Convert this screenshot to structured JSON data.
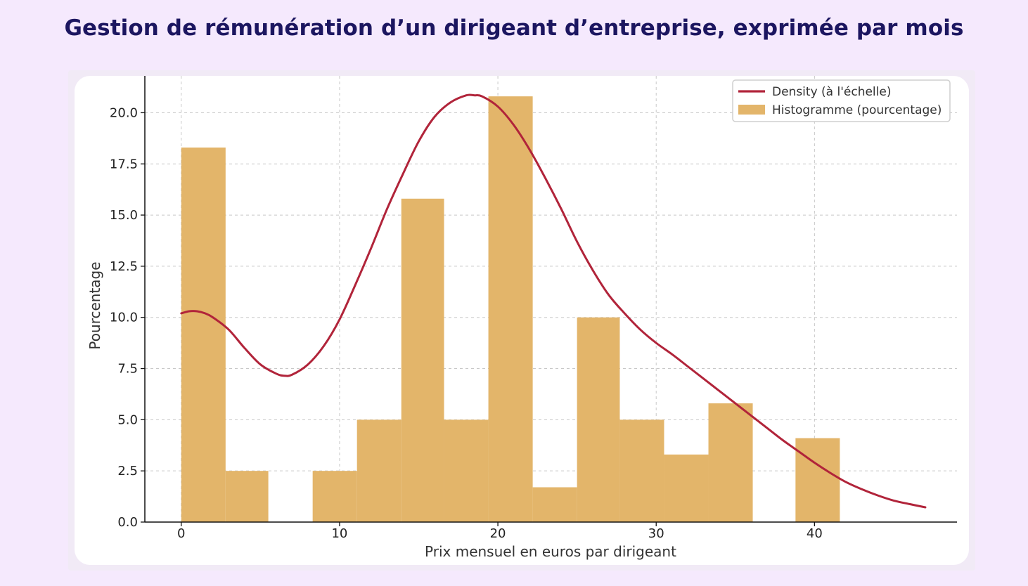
{
  "page": {
    "title": "Gestion de rémunération d’un dirigeant d’entreprise, exprimée par mois"
  },
  "colors": {
    "background": "#f5e9fd",
    "title": "#1c1660",
    "bar": "#e3b56a",
    "density": "#b1243a",
    "grid": "#c8c8c8"
  },
  "chart_data": {
    "type": "bar",
    "title": "",
    "xlabel": "Prix mensuel en euros par dirigeant",
    "ylabel": "Pourcentage",
    "xlim": [
      -2.3,
      49
    ],
    "ylim": [
      0,
      21.8
    ],
    "xticks": [
      0,
      10,
      20,
      30,
      40
    ],
    "yticks": [
      0.0,
      2.5,
      5.0,
      7.5,
      10.0,
      12.5,
      15.0,
      17.5,
      20.0
    ],
    "grid": true,
    "legend_position": "top-right",
    "series": [
      {
        "name": "Density (à l'échelle)",
        "kind": "line",
        "x": [
          0,
          0.5,
          1,
          1.5,
          2,
          3,
          4,
          5,
          6,
          6.5,
          7,
          8,
          9,
          10,
          11,
          12,
          13,
          14,
          15,
          16,
          17,
          18,
          18.5,
          19,
          20,
          21,
          22,
          23,
          24,
          25,
          26,
          27,
          28,
          29,
          30,
          31,
          32,
          33,
          34,
          35,
          36,
          37,
          38,
          39,
          40,
          41,
          42,
          43,
          44,
          45,
          46,
          47
        ],
        "y": [
          10.2,
          10.3,
          10.3,
          10.2,
          10.0,
          9.4,
          8.5,
          7.7,
          7.25,
          7.15,
          7.2,
          7.7,
          8.6,
          9.9,
          11.6,
          13.4,
          15.3,
          17.0,
          18.6,
          19.8,
          20.5,
          20.85,
          20.85,
          20.8,
          20.3,
          19.4,
          18.2,
          16.8,
          15.3,
          13.7,
          12.3,
          11.1,
          10.2,
          9.4,
          8.75,
          8.2,
          7.6,
          7.0,
          6.4,
          5.8,
          5.2,
          4.6,
          4.0,
          3.45,
          2.9,
          2.4,
          1.95,
          1.6,
          1.3,
          1.05,
          0.88,
          0.72
        ]
      },
      {
        "name": "Histogramme (pourcentage)",
        "kind": "histogram",
        "bins": [
          {
            "x0": 0.0,
            "x1": 2.8,
            "value": 18.3
          },
          {
            "x0": 2.8,
            "x1": 5.5,
            "value": 2.5
          },
          {
            "x0": 5.5,
            "x1": 8.3,
            "value": 0
          },
          {
            "x0": 8.3,
            "x1": 11.1,
            "value": 2.5
          },
          {
            "x0": 11.1,
            "x1": 13.9,
            "value": 5.0
          },
          {
            "x0": 13.9,
            "x1": 16.6,
            "value": 15.8
          },
          {
            "x0": 16.6,
            "x1": 19.4,
            "value": 5.0
          },
          {
            "x0": 19.4,
            "x1": 22.2,
            "value": 20.8
          },
          {
            "x0": 22.2,
            "x1": 25.0,
            "value": 1.7
          },
          {
            "x0": 25.0,
            "x1": 27.7,
            "value": 10.0
          },
          {
            "x0": 27.7,
            "x1": 30.5,
            "value": 5.0
          },
          {
            "x0": 30.5,
            "x1": 33.3,
            "value": 3.3
          },
          {
            "x0": 33.3,
            "x1": 36.1,
            "value": 5.8
          },
          {
            "x0": 36.1,
            "x1": 38.8,
            "value": 0
          },
          {
            "x0": 38.8,
            "x1": 41.6,
            "value": 4.1
          }
        ]
      }
    ]
  }
}
